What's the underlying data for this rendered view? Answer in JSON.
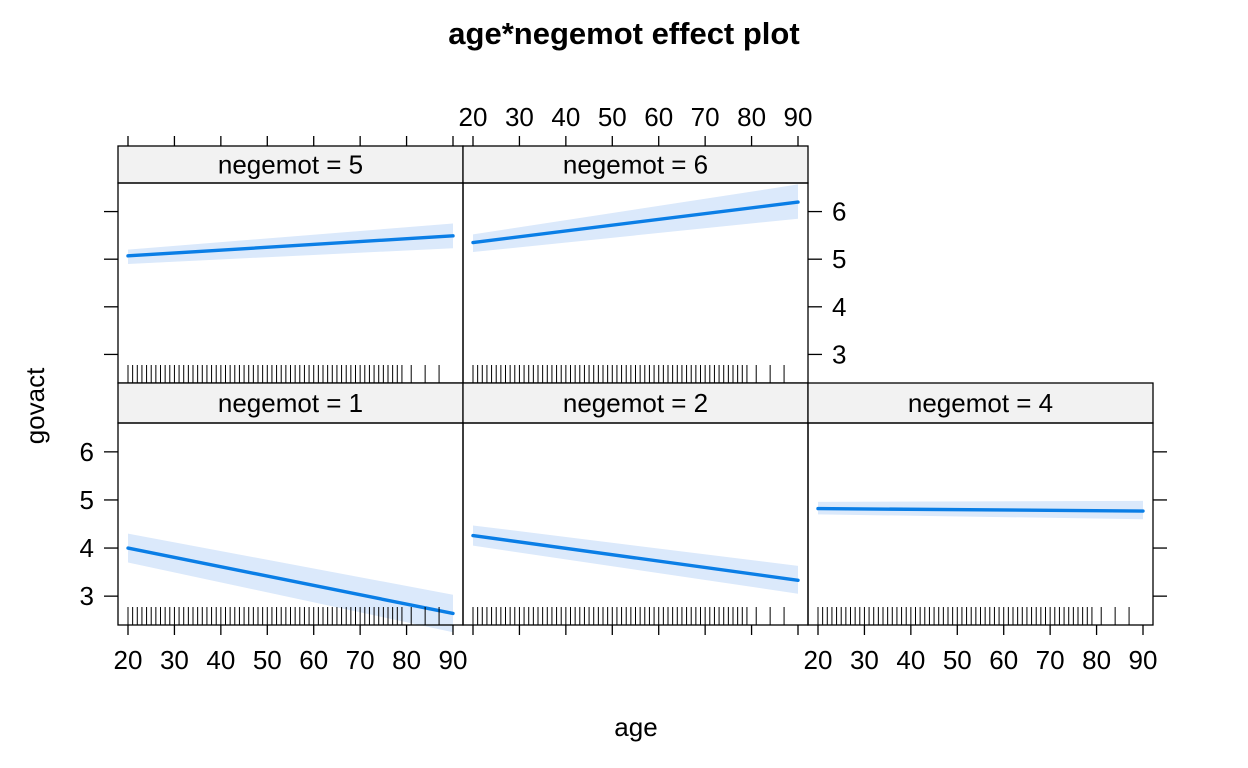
{
  "chart_data": {
    "type": "line",
    "title": "age*negemot effect plot",
    "xlabel": "age",
    "ylabel": "govact",
    "x_ticks": [
      20,
      30,
      40,
      50,
      60,
      70,
      80,
      90
    ],
    "y_ticks": [
      3,
      4,
      5,
      6
    ],
    "xlim": [
      18.5,
      91.5
    ],
    "ylim": [
      2.4,
      6.6
    ],
    "line_color": "#0a7ee6",
    "band_color": "#dbe9fb",
    "rug_ages": [
      20,
      21,
      22,
      23,
      24,
      25,
      26,
      27,
      28,
      29,
      30,
      31,
      32,
      33,
      34,
      35,
      36,
      37,
      38,
      39,
      40,
      41,
      42,
      43,
      44,
      45,
      46,
      47,
      48,
      49,
      50,
      51,
      52,
      53,
      54,
      55,
      56,
      57,
      58,
      59,
      60,
      61,
      62,
      63,
      64,
      65,
      66,
      67,
      68,
      69,
      70,
      71,
      72,
      73,
      74,
      75,
      76,
      77,
      78,
      79,
      81,
      84,
      87
    ],
    "panels": [
      {
        "label": "negemot = 5",
        "row": "top",
        "col": 0,
        "x": [
          20,
          90
        ],
        "fit": [
          5.07,
          5.49
        ],
        "lower": [
          4.9,
          5.23
        ],
        "upper": [
          5.2,
          5.75
        ]
      },
      {
        "label": "negemot = 6",
        "row": "top",
        "col": 1,
        "x": [
          20,
          90
        ],
        "fit": [
          5.35,
          6.2
        ],
        "lower": [
          5.15,
          5.85
        ],
        "upper": [
          5.52,
          6.57
        ]
      },
      {
        "label": "negemot = 1",
        "row": "bottom",
        "col": 0,
        "x": [
          20,
          90
        ],
        "fit": [
          4.0,
          2.64
        ],
        "lower": [
          3.7,
          2.25
        ],
        "upper": [
          4.3,
          3.03
        ]
      },
      {
        "label": "negemot = 2",
        "row": "bottom",
        "col": 1,
        "x": [
          20,
          90
        ],
        "fit": [
          4.26,
          3.33
        ],
        "lower": [
          4.05,
          3.05
        ],
        "upper": [
          4.47,
          3.63
        ]
      },
      {
        "label": "negemot = 4",
        "row": "bottom",
        "col": 2,
        "x": [
          20,
          90
        ],
        "fit": [
          4.82,
          4.77
        ],
        "lower": [
          4.7,
          4.6
        ],
        "upper": [
          4.96,
          4.98
        ]
      }
    ]
  }
}
